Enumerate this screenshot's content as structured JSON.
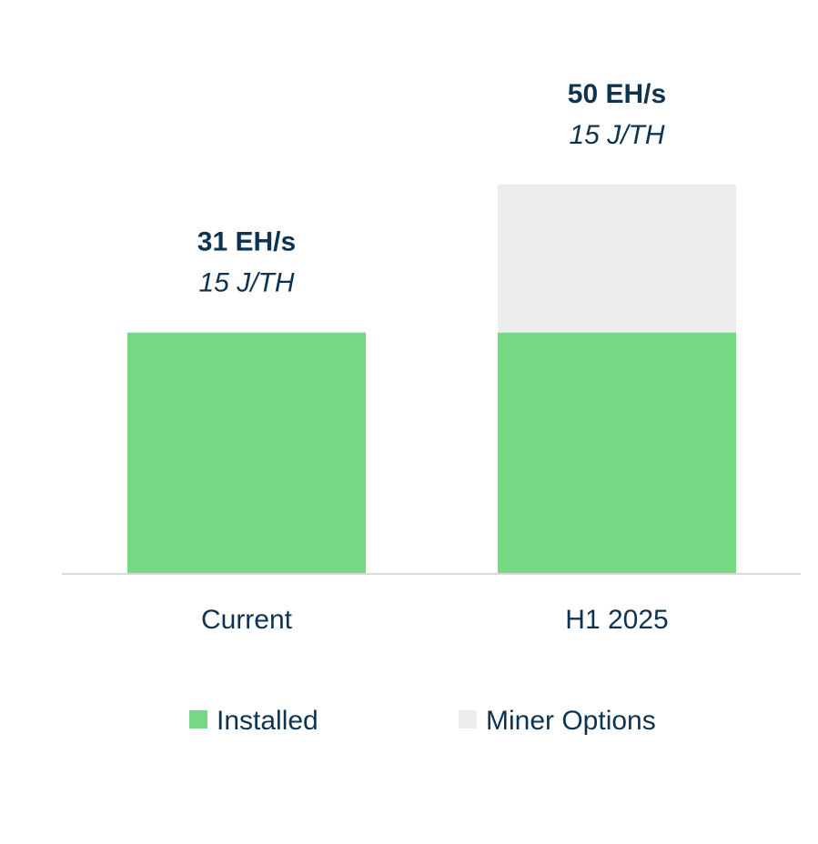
{
  "chart_data": {
    "type": "bar",
    "stacked": true,
    "categories": [
      "Current",
      "H1 2025"
    ],
    "series": [
      {
        "name": "Installed",
        "values": [
          31,
          31
        ],
        "color": "#74d982"
      },
      {
        "name": "Miner Options",
        "values": [
          0,
          19
        ],
        "color": "#ececec"
      }
    ],
    "totals": [
      31,
      50
    ],
    "data_labels": [
      {
        "value": "31 EH/s",
        "efficiency": "15 J/TH"
      },
      {
        "value": "50 EH/s",
        "efficiency": "15 J/TH"
      }
    ],
    "ylim": [
      0,
      50
    ],
    "grid": false,
    "legend_position": "bottom",
    "title": "",
    "xlabel": "",
    "ylabel": ""
  },
  "colors": {
    "axis": "#d9d9d9",
    "text": "#0d3350"
  }
}
